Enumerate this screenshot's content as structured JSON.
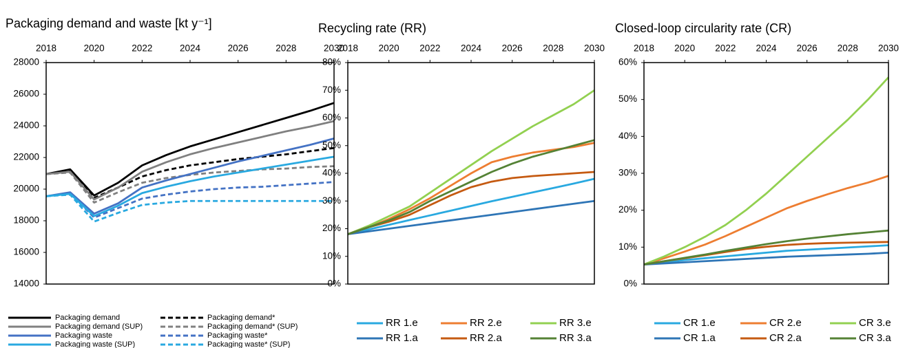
{
  "chart_data": [
    {
      "type": "line",
      "title": "Packaging demand and waste [kt y⁻¹]",
      "x": [
        2018,
        2019,
        2020,
        2021,
        2022,
        2023,
        2024,
        2025,
        2026,
        2027,
        2028,
        2029,
        2030
      ],
      "xlim": [
        2018,
        2030
      ],
      "xticks": [
        2018,
        2020,
        2022,
        2024,
        2026,
        2028,
        2030
      ],
      "ylim": [
        14000,
        28000
      ],
      "yticks": [
        14000,
        16000,
        18000,
        20000,
        22000,
        24000,
        26000,
        28000
      ],
      "series": [
        {
          "name": "Packaging demand",
          "color": "#000000",
          "linestyle": "solid",
          "values": [
            20950,
            21250,
            19600,
            20400,
            21500,
            22150,
            22700,
            23150,
            23600,
            24050,
            24500,
            24950,
            25450
          ]
        },
        {
          "name": "Packaging demand*",
          "color": "#000000",
          "linestyle": "dashed",
          "values": [
            20950,
            21200,
            19450,
            20100,
            20800,
            21200,
            21500,
            21700,
            21900,
            22050,
            22200,
            22400,
            22600
          ]
        },
        {
          "name": "Packaging demand (SUP)",
          "color": "#808080",
          "linestyle": "solid",
          "values": [
            20950,
            21100,
            19350,
            20100,
            21100,
            21700,
            22200,
            22600,
            22950,
            23300,
            23650,
            23950,
            24300
          ]
        },
        {
          "name": "Packaging demand* (SUP)",
          "color": "#808080",
          "linestyle": "dashed",
          "values": [
            20950,
            21050,
            19150,
            19800,
            20400,
            20700,
            20900,
            21050,
            21150,
            21250,
            21300,
            21400,
            21450
          ]
        },
        {
          "name": "Packaging waste",
          "color": "#4472c4",
          "linestyle": "solid",
          "values": [
            19550,
            19800,
            18450,
            19100,
            20100,
            20550,
            20950,
            21350,
            21750,
            22100,
            22450,
            22800,
            23200
          ]
        },
        {
          "name": "Packaging waste*",
          "color": "#4472c4",
          "linestyle": "dashed",
          "values": [
            19550,
            19750,
            18200,
            18800,
            19400,
            19650,
            19850,
            20000,
            20100,
            20150,
            20250,
            20350,
            20450
          ]
        },
        {
          "name": "Packaging waste (SUP)",
          "color": "#29a9e0",
          "linestyle": "solid",
          "values": [
            19550,
            19700,
            18300,
            18950,
            19750,
            20150,
            20500,
            20800,
            21050,
            21300,
            21550,
            21800,
            22050
          ]
        },
        {
          "name": "Packaging waste* (SUP)",
          "color": "#29a9e0",
          "linestyle": "dashed",
          "values": [
            19550,
            19650,
            17950,
            18500,
            19000,
            19150,
            19250,
            19250,
            19250,
            19250,
            19250,
            19250,
            19250
          ]
        }
      ]
    },
    {
      "type": "line",
      "title": "Recycling rate (RR)",
      "x": [
        2018,
        2019,
        2020,
        2021,
        2022,
        2023,
        2024,
        2025,
        2026,
        2027,
        2028,
        2029,
        2030
      ],
      "xlim": [
        2018,
        2030
      ],
      "xticks": [
        2018,
        2020,
        2022,
        2024,
        2026,
        2028,
        2030
      ],
      "ylim": [
        0,
        80
      ],
      "yticks": [
        {
          "value": 0,
          "label": "0%"
        },
        {
          "value": 10,
          "label": "10%"
        },
        {
          "value": 20,
          "label": "20%"
        },
        {
          "value": 30,
          "label": "30%"
        },
        {
          "value": 40,
          "label": "40%"
        },
        {
          "value": 50,
          "label": "50%"
        },
        {
          "value": 60,
          "label": "60%"
        },
        {
          "value": 70,
          "label": "70%"
        },
        {
          "value": 80,
          "label": "80%"
        }
      ],
      "series": [
        {
          "name": "RR 1.e",
          "color": "#29a9e0",
          "values": [
            18,
            19.7,
            21.4,
            23.1,
            24.8,
            26.5,
            28.2,
            29.9,
            31.5,
            33.1,
            34.7,
            36.3,
            38
          ]
        },
        {
          "name": "RR 2.e",
          "color": "#ed7d31",
          "values": [
            18,
            20.5,
            23.5,
            27,
            31,
            35.5,
            40,
            44,
            46,
            47.5,
            48.5,
            49.5,
            51
          ]
        },
        {
          "name": "RR 3.e",
          "color": "#92d050",
          "values": [
            18,
            21,
            24.5,
            28,
            33,
            38,
            43,
            48,
            52.5,
            57,
            61,
            65,
            70
          ]
        },
        {
          "name": "RR 1.a",
          "color": "#2e75b6",
          "values": [
            18,
            19,
            20,
            21,
            22,
            23,
            24,
            25,
            26,
            27,
            28,
            29,
            30
          ]
        },
        {
          "name": "RR 2.a",
          "color": "#c55a11",
          "values": [
            18,
            20.5,
            22.5,
            25,
            28.5,
            32,
            35,
            37,
            38.3,
            39,
            39.5,
            40,
            40.5
          ]
        },
        {
          "name": "RR 3.a",
          "color": "#548235",
          "values": [
            18,
            20.5,
            23,
            26,
            30,
            33.5,
            37,
            40.5,
            43.5,
            46,
            48,
            50,
            52
          ]
        }
      ]
    },
    {
      "type": "line",
      "title": "Closed-loop circularity rate (CR)",
      "x": [
        2018,
        2019,
        2020,
        2021,
        2022,
        2023,
        2024,
        2025,
        2026,
        2027,
        2028,
        2029,
        2030
      ],
      "xlim": [
        2018,
        2030
      ],
      "xticks": [
        2018,
        2020,
        2022,
        2024,
        2026,
        2028,
        2030
      ],
      "ylim": [
        0,
        60
      ],
      "yticks": [
        {
          "value": 0,
          "label": "0%"
        },
        {
          "value": 10,
          "label": "10%"
        },
        {
          "value": 20,
          "label": "20%"
        },
        {
          "value": 30,
          "label": "30%"
        },
        {
          "value": 40,
          "label": "40%"
        },
        {
          "value": 50,
          "label": "50%"
        },
        {
          "value": 60,
          "label": "60%"
        }
      ],
      "series": [
        {
          "name": "CR 1.e",
          "color": "#29a9e0",
          "values": [
            5.3,
            5.9,
            6.5,
            7,
            7.5,
            8,
            8.5,
            9,
            9.3,
            9.6,
            9.9,
            10.2,
            10.5
          ]
        },
        {
          "name": "CR 2.e",
          "color": "#ed7d31",
          "values": [
            5.3,
            7,
            8.8,
            10.7,
            13,
            15.5,
            18,
            20.5,
            22.5,
            24.3,
            26,
            27.5,
            29.3
          ]
        },
        {
          "name": "CR 3.e",
          "color": "#92d050",
          "values": [
            5.3,
            7.5,
            10,
            12.8,
            16,
            20,
            24.5,
            29.5,
            34.5,
            39.5,
            44.5,
            50,
            56
          ]
        },
        {
          "name": "CR 1.a",
          "color": "#2e75b6",
          "values": [
            5.3,
            5.6,
            5.9,
            6.2,
            6.5,
            6.8,
            7.1,
            7.4,
            7.6,
            7.8,
            8,
            8.2,
            8.5
          ]
        },
        {
          "name": "CR 2.a",
          "color": "#c55a11",
          "values": [
            5.3,
            6.2,
            7,
            7.8,
            8.7,
            9.5,
            10.1,
            10.6,
            10.9,
            11.1,
            11.2,
            11.3,
            11.4
          ]
        },
        {
          "name": "CR 3.a",
          "color": "#548235",
          "values": [
            5.3,
            6.2,
            7.1,
            8,
            9,
            9.9,
            10.8,
            11.6,
            12.3,
            12.9,
            13.5,
            14,
            14.5
          ]
        }
      ]
    }
  ]
}
